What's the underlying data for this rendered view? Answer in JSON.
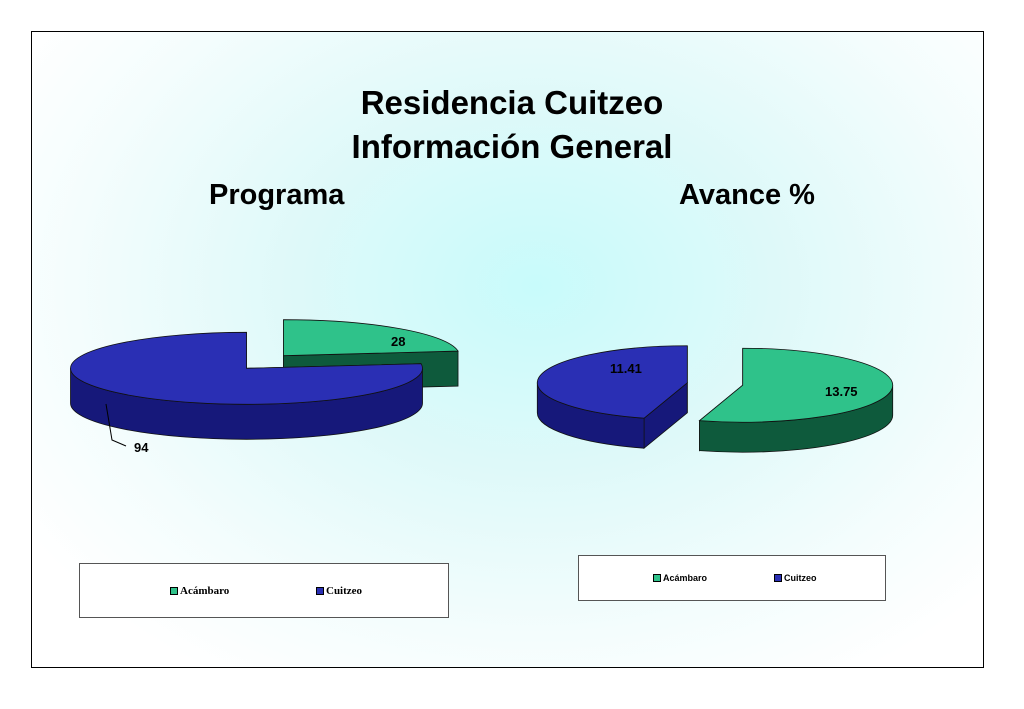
{
  "title": {
    "line1": "Residencia Cuitzeo",
    "line2": "Información General"
  },
  "colors": {
    "acambaro": "#2fc28a",
    "acambaro_dark": "#0e5a3c",
    "cuitzeo": "#2a2fb4",
    "cuitzeo_dark": "#16187a"
  },
  "chart_data": [
    {
      "type": "pie",
      "title": "Programa",
      "categories": [
        "Acámbaro",
        "Cuitzeo"
      ],
      "values": [
        28,
        94
      ],
      "data_labels": [
        "28",
        "94"
      ],
      "exploded": true,
      "style": "3d",
      "legend": [
        "Acámbaro",
        "Cuitzeo"
      ],
      "legend_position": "bottom"
    },
    {
      "type": "pie",
      "title": "Avance %",
      "categories": [
        "Acámbaro",
        "Cuitzeo"
      ],
      "values": [
        13.75,
        11.41
      ],
      "data_labels": [
        "13.75",
        "11.41"
      ],
      "exploded": true,
      "style": "3d",
      "legend": [
        "Acámbaro",
        "Cuitzeo"
      ],
      "legend_position": "bottom"
    }
  ]
}
